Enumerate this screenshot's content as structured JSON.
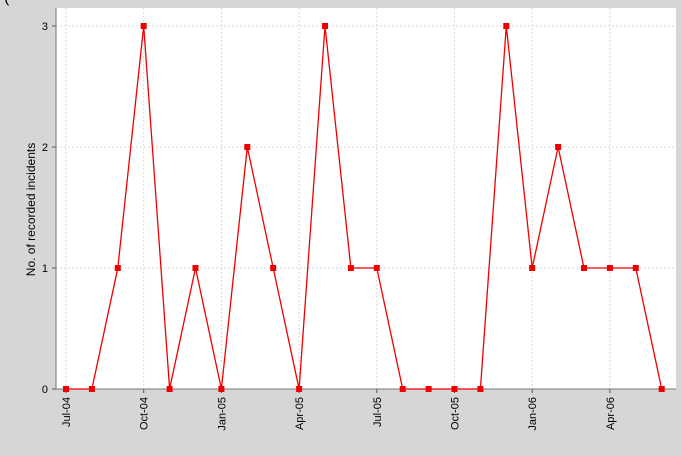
{
  "top_fragment": "(",
  "colors": {
    "background": "#d6d6d6",
    "plot_background": "#ffffff",
    "series": "#ee0000",
    "grid": "#d9d9d9"
  },
  "chart_data": {
    "type": "line",
    "title": "",
    "xlabel": "",
    "ylabel": "No. of recorded incidents",
    "ylim": [
      0,
      3
    ],
    "y_ticks": [
      "0",
      "1",
      "2",
      "3"
    ],
    "x_tick_labels": [
      "Jul-04",
      "Oct-04",
      "Jan-05",
      "Apr-05",
      "Jul-05",
      "Oct-05",
      "Jan-06",
      "Apr-06"
    ],
    "grid": true,
    "marker": "square",
    "series": [
      {
        "x": [
          "Jul-04",
          "Aug-04",
          "Sep-04",
          "Oct-04",
          "Nov-04",
          "Dec-04",
          "Jan-05",
          "Feb-05",
          "Mar-05",
          "Apr-05",
          "May-05",
          "Jun-05",
          "Jul-05",
          "Aug-05",
          "Sep-05",
          "Oct-05",
          "Nov-05",
          "Dec-05",
          "Jan-06",
          "Feb-06",
          "Mar-06",
          "Apr-06",
          "May-06",
          "Jun-06"
        ],
        "values": [
          0,
          0,
          1,
          3,
          0,
          1,
          0,
          2,
          1,
          0,
          3,
          1,
          1,
          0,
          0,
          0,
          0,
          3,
          1,
          2,
          1,
          1,
          1,
          0
        ]
      }
    ]
  }
}
